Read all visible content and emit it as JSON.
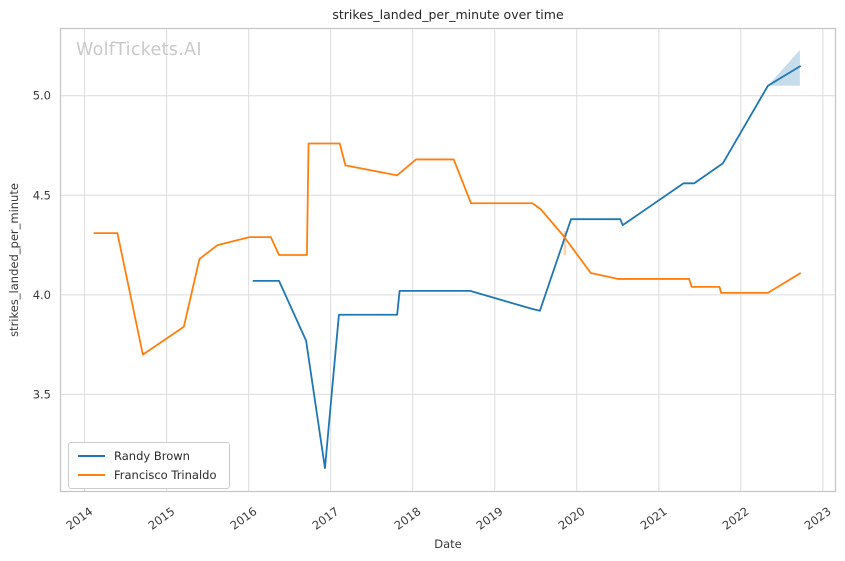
{
  "watermark": "WolfTickets.AI",
  "chart_data": {
    "type": "line",
    "title": "strikes_landed_per_minute over time",
    "xlabel": "Date",
    "ylabel": "strikes_landed_per_minute",
    "x_ticks": [
      2014,
      2015,
      2016,
      2017,
      2018,
      2019,
      2020,
      2021,
      2022,
      2023
    ],
    "y_ticks": [
      3.5,
      4.0,
      4.5,
      5.0
    ],
    "xlim": [
      2013.7,
      2023.16
    ],
    "ylim": [
      3.01,
      5.34
    ],
    "grid": true,
    "background": "#ffffff",
    "grid_color": "#dcdcdc",
    "spine_color": "#c4c4c4",
    "tick_color": "#3a3a3a",
    "legend": {
      "position": "lower left",
      "entries": [
        "Randy Brown",
        "Francisco Trinaldo"
      ]
    },
    "series": [
      {
        "name": "Randy Brown",
        "color": "#1f77b4",
        "x": [
          2016.05,
          2016.37,
          2016.7,
          2016.93,
          2017.1,
          2017.81,
          2017.84,
          2018.7,
          2019.45,
          2019.55,
          2019.93,
          2020.53,
          2020.56,
          2021.3,
          2021.43,
          2021.78,
          2022.33,
          2022.73
        ],
        "y": [
          4.07,
          4.07,
          3.77,
          3.13,
          3.9,
          3.9,
          4.02,
          4.02,
          3.93,
          3.92,
          4.38,
          4.38,
          4.35,
          4.56,
          4.56,
          4.66,
          5.05,
          5.15
        ]
      },
      {
        "name": "Francisco Trinaldo",
        "color": "#ff7f0e",
        "x": [
          2014.11,
          2014.4,
          2014.71,
          2015.21,
          2015.4,
          2015.62,
          2016.01,
          2016.27,
          2016.37,
          2016.71,
          2016.73,
          2017.11,
          2017.18,
          2017.81,
          2018.04,
          2018.5,
          2018.71,
          2019.46,
          2019.56,
          2019.83,
          2020.17,
          2020.5,
          2021.37,
          2021.4,
          2021.74,
          2021.76,
          2022.33,
          2022.73
        ],
        "y": [
          4.31,
          4.31,
          3.7,
          3.84,
          4.18,
          4.25,
          4.29,
          4.29,
          4.2,
          4.2,
          4.76,
          4.76,
          4.65,
          4.6,
          4.68,
          4.68,
          4.46,
          4.46,
          4.43,
          4.3,
          4.11,
          4.08,
          4.08,
          4.04,
          4.04,
          4.01,
          4.01,
          4.11
        ]
      }
    ],
    "bands": [
      {
        "series": "Randy Brown",
        "color": "#1f77b4",
        "opacity": 0.25,
        "polygon_x": [
          2022.33,
          2022.72,
          2022.72
        ],
        "polygon_y": [
          5.05,
          5.23,
          5.05
        ]
      },
      {
        "series": "Francisco Trinaldo",
        "color": "#ff7f0e",
        "opacity": 0.35,
        "polygon_x": [
          2019.84,
          2019.87,
          2019.87,
          2019.84
        ],
        "polygon_y": [
          4.2,
          4.2,
          4.32,
          4.32
        ]
      }
    ]
  }
}
